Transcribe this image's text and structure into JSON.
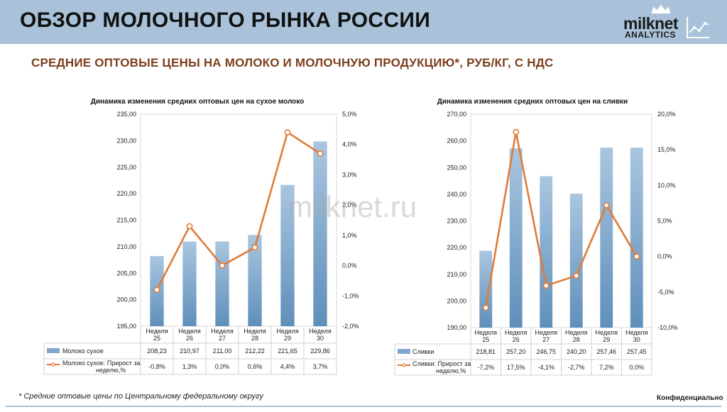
{
  "header": {
    "title": "ОБЗОР МОЛОЧНОГО РЫНКА РОССИИ",
    "logo_name": "milknet",
    "logo_sub": "ANALYTICS"
  },
  "subtitle": "СРЕДНИЕ ОПТОВЫЕ ЦЕНЫ НА МОЛОКО И МОЛОЧНУЮ ПРОДУКЦИЮ*, РУБ/КГ, С НДС",
  "watermark": "milknet.ru",
  "footnote": "* Средние оптовые цены по Центральному федеральному округу",
  "confidential": "Конфиденциально",
  "colors": {
    "bar": "#7fa8cc",
    "line": "#e07b39",
    "header": "#a9c2da",
    "subtitle": "#7b3f1e"
  },
  "chart_data": [
    {
      "type": "bar",
      "title": "Динамика  изменения средних оптовых цен на сухое молоко",
      "categories": [
        "Неделя 25",
        "Неделя 26",
        "Неделя 27",
        "Неделя 28",
        "Неделя 29",
        "Неделя 30"
      ],
      "series": [
        {
          "name": "Молоко сухое",
          "kind": "bar",
          "axis": "left",
          "values": [
            208.23,
            210.97,
            211.0,
            212.22,
            221.65,
            229.86
          ],
          "labels": [
            "208,23",
            "210,97",
            "211,00",
            "212,22",
            "221,65",
            "229,86"
          ]
        },
        {
          "name": "Молоко сухое: Прирост за неделю,%",
          "kind": "line",
          "axis": "right",
          "values": [
            -0.8,
            1.3,
            0.0,
            0.6,
            4.4,
            3.7
          ],
          "labels": [
            "-0,8%",
            "1,3%",
            "0,0%",
            "0,6%",
            "4,4%",
            "3,7%"
          ]
        }
      ],
      "ylim": [
        195,
        235
      ],
      "ylim_right": [
        -2.0,
        5.0
      ],
      "y_ticks": [
        "235,00",
        "230,00",
        "225,00",
        "220,00",
        "215,00",
        "210,00",
        "205,00",
        "200,00",
        "195,00"
      ],
      "y_right_ticks": [
        "5,0%",
        "4,0%",
        "3,0%",
        "2,0%",
        "1,0%",
        "0,0%",
        "-1,0%",
        "-2,0%"
      ],
      "legend": "data-table"
    },
    {
      "type": "bar",
      "title": "Динамика  изменения средних оптовых цен на сливки",
      "categories": [
        "Неделя 25",
        "Неделя 26",
        "Неделя 27",
        "Неделя 28",
        "Неделя 29",
        "Неделя 30"
      ],
      "series": [
        {
          "name": "Сливки",
          "kind": "bar",
          "axis": "left",
          "values": [
            218.81,
            257.2,
            246.75,
            240.2,
            257.46,
            257.45
          ],
          "labels": [
            "218,81",
            "257,20",
            "246,75",
            "240,20",
            "257,46",
            "257,45"
          ]
        },
        {
          "name": "Сливки: Прирост за неделю,%",
          "kind": "line",
          "axis": "right",
          "values": [
            -7.2,
            17.5,
            -4.1,
            -2.7,
            7.2,
            0.0
          ],
          "labels": [
            "-7,2%",
            "17,5%",
            "-4,1%",
            "-2,7%",
            "7,2%",
            "0,0%"
          ]
        }
      ],
      "ylim": [
        190,
        270
      ],
      "ylim_right": [
        -10.0,
        20.0
      ],
      "y_ticks": [
        "270,00",
        "260,00",
        "250,00",
        "240,00",
        "230,00",
        "220,00",
        "210,00",
        "200,00",
        "190,00"
      ],
      "y_right_ticks": [
        "20,0%",
        "15,0%",
        "10,0%",
        "5,0%",
        "0,0%",
        "-5,0%",
        "-10,0%"
      ],
      "legend": "data-table"
    }
  ]
}
